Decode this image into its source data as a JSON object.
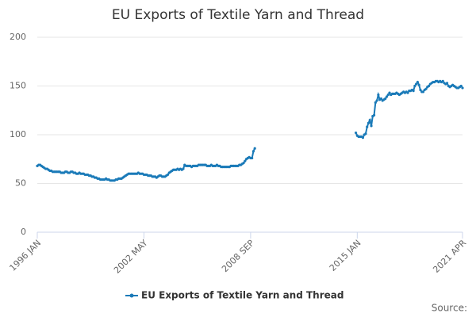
{
  "chart_data": {
    "type": "line",
    "title": "EU Exports of Textile Yarn and Thread",
    "categories": [
      "1996 JAN",
      null,
      null,
      null,
      null,
      null,
      null,
      null,
      null,
      null,
      null,
      null,
      null,
      null,
      null,
      null,
      null,
      null,
      null,
      null,
      null,
      null,
      null,
      null,
      null,
      null,
      null,
      null,
      null,
      null,
      null,
      null,
      null,
      null,
      null,
      null,
      null,
      null,
      null,
      null,
      null,
      null,
      null,
      null,
      null,
      null,
      null,
      null,
      null,
      null,
      null,
      null,
      null,
      null,
      null,
      null,
      null,
      null,
      null,
      null,
      null,
      null,
      null,
      null,
      null,
      null,
      null,
      null,
      null,
      null,
      null,
      null,
      null,
      null,
      null,
      null,
      "2002 MAY",
      null,
      null,
      null,
      null,
      null,
      null,
      null,
      null,
      null,
      null,
      null,
      null,
      null,
      null,
      null,
      null,
      null,
      null,
      null,
      null,
      null,
      null,
      null,
      null,
      null,
      null,
      null,
      null,
      null,
      null,
      null,
      null,
      null,
      null,
      null,
      null,
      null,
      null,
      null,
      null,
      null,
      null,
      null,
      null,
      null,
      null,
      null,
      null,
      null,
      null,
      null,
      null,
      null,
      null,
      null,
      null,
      null,
      null,
      null,
      null,
      null,
      null,
      null,
      null,
      null,
      null,
      null,
      null,
      null,
      null,
      null,
      null,
      null,
      null,
      null,
      "2008 SEP",
      null,
      null,
      null,
      null,
      null,
      null,
      null,
      null,
      null,
      null,
      null,
      null,
      null,
      null,
      null,
      null,
      null,
      null,
      null,
      null,
      null,
      null,
      null,
      null,
      null,
      null,
      null,
      null,
      null,
      null,
      null,
      null,
      null,
      null,
      null,
      null,
      null,
      null,
      null,
      null,
      null,
      null,
      null,
      null,
      null,
      null,
      null,
      null,
      null,
      null,
      null,
      null,
      null,
      null,
      null,
      null,
      null,
      null,
      null,
      null,
      null,
      null,
      null,
      null,
      null,
      null,
      null,
      null,
      null,
      null,
      null,
      null,
      null,
      null,
      null,
      "2015 JAN",
      null,
      null,
      null,
      null,
      null,
      null,
      null,
      null,
      null,
      null,
      null,
      null,
      null,
      null,
      null,
      null,
      null,
      null,
      null,
      null,
      null,
      null,
      null,
      null,
      null,
      null,
      null,
      null,
      null,
      null,
      null,
      null,
      null,
      null,
      null,
      null,
      null,
      null,
      null,
      null,
      null,
      null,
      null,
      null,
      null,
      null,
      null,
      null,
      null,
      null,
      null,
      null,
      null,
      null,
      null,
      null,
      null,
      null,
      null,
      null,
      null,
      null,
      null,
      null,
      null,
      null,
      null,
      null,
      null,
      null,
      null,
      null,
      null,
      null,
      "2021 APR"
    ],
    "series": [
      {
        "name": "EU Exports of Textile Yarn and Thread",
        "color": "#1a7ab8",
        "values": [
          68,
          69,
          69,
          68,
          67,
          66,
          65,
          65,
          64,
          63,
          63,
          62,
          62,
          62,
          62,
          62,
          62,
          61,
          61,
          61,
          62,
          62,
          61,
          61,
          62,
          62,
          61,
          61,
          60,
          60,
          61,
          60,
          60,
          60,
          59,
          59,
          59,
          58,
          58,
          57,
          57,
          56,
          56,
          55,
          55,
          54,
          54,
          54,
          54,
          55,
          54,
          54,
          53,
          53,
          53,
          53,
          54,
          54,
          55,
          55,
          55,
          56,
          57,
          58,
          59,
          60,
          60,
          60,
          60,
          60,
          60,
          60,
          61,
          60,
          60,
          60,
          59,
          59,
          59,
          58,
          58,
          58,
          57,
          57,
          57,
          56,
          57,
          58,
          58,
          57,
          57,
          57,
          58,
          59,
          61,
          62,
          63,
          64,
          64,
          64,
          65,
          64,
          65,
          64,
          65,
          69,
          68,
          68,
          68,
          68,
          67,
          68,
          68,
          68,
          68,
          69,
          69,
          69,
          69,
          69,
          69,
          68,
          68,
          68,
          69,
          68,
          68,
          68,
          69,
          68,
          68,
          67,
          67,
          67,
          67,
          67,
          67,
          67,
          68,
          68,
          68,
          68,
          68,
          68,
          69,
          69,
          70,
          71,
          73,
          75,
          76,
          77,
          76,
          76,
          83,
          86,
          null,
          null,
          null,
          null,
          null,
          null,
          null,
          null,
          null,
          null,
          null,
          null,
          null,
          null,
          null,
          null,
          null,
          null,
          null,
          null,
          null,
          null,
          null,
          null,
          null,
          null,
          null,
          null,
          null,
          null,
          null,
          null,
          null,
          null,
          null,
          null,
          null,
          null,
          null,
          null,
          null,
          null,
          null,
          null,
          null,
          null,
          null,
          null,
          null,
          null,
          null,
          null,
          null,
          null,
          null,
          null,
          null,
          null,
          null,
          null,
          null,
          null,
          null,
          null,
          null,
          null,
          null,
          null,
          null,
          null,
          null,
          102,
          99,
          98,
          98,
          98,
          97,
          100,
          101,
          108,
          112,
          115,
          109,
          119,
          120,
          133,
          135,
          141,
          136,
          137,
          135,
          136,
          137,
          139,
          141,
          143,
          141,
          142,
          142,
          142,
          143,
          142,
          141,
          142,
          143,
          144,
          143,
          144,
          143,
          145,
          145,
          146,
          145,
          150,
          152,
          154,
          151,
          146,
          144,
          144,
          146,
          147,
          149,
          150,
          152,
          153,
          154,
          154,
          155,
          155,
          154,
          155,
          154,
          155,
          153,
          152,
          153,
          150,
          149,
          150,
          151,
          150,
          149,
          148,
          148,
          149,
          150,
          148
        ]
      }
    ],
    "ylim": [
      0,
      200
    ],
    "yticks": [
      0,
      50,
      100,
      150,
      200
    ],
    "grid": true,
    "legend": "bottom",
    "source": "Source:"
  }
}
